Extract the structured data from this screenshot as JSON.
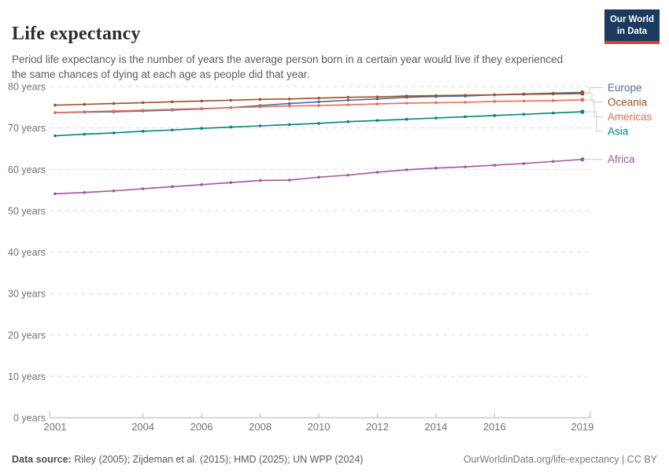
{
  "header": {
    "title": "Life expectancy",
    "subtitle": "Period life expectancy is the number of years the average person born in a certain year would live if they experienced the same chances of dying at each age as people did that year.",
    "logo": {
      "line1": "Our World",
      "line2": "in Data",
      "bg_color": "#1b3a5f",
      "bar_color": "#dc3c2a"
    }
  },
  "chart_data": {
    "type": "line",
    "title": "Life expectancy",
    "xlabel": "",
    "ylabel": "",
    "x": [
      2001,
      2002,
      2003,
      2004,
      2005,
      2006,
      2007,
      2008,
      2009,
      2010,
      2011,
      2012,
      2013,
      2014,
      2015,
      2016,
      2017,
      2018,
      2019
    ],
    "x_tick_labels": [
      2001,
      2004,
      2006,
      2008,
      2010,
      2012,
      2014,
      2016,
      2019
    ],
    "y_ticks": [
      0,
      10,
      20,
      30,
      40,
      50,
      60,
      70,
      80
    ],
    "y_tick_suffix": " years",
    "ylim": [
      0,
      80
    ],
    "xlim": [
      2001,
      2019
    ],
    "grid": "horizontal-dashed",
    "legend_position": "right-of-line-ends",
    "series": [
      {
        "name": "Europe",
        "color": "#4C6A9C",
        "values": [
          73.7,
          73.8,
          73.9,
          74.1,
          74.3,
          74.6,
          74.9,
          75.4,
          75.9,
          76.3,
          76.7,
          77.0,
          77.4,
          77.6,
          77.7,
          78.0,
          78.2,
          78.4,
          78.6
        ]
      },
      {
        "name": "Oceania",
        "color": "#9A5129",
        "values": [
          75.5,
          75.7,
          75.9,
          76.1,
          76.3,
          76.5,
          76.7,
          76.9,
          77.0,
          77.2,
          77.4,
          77.5,
          77.7,
          77.8,
          77.9,
          78.0,
          78.1,
          78.2,
          78.3
        ]
      },
      {
        "name": "Americas",
        "color": "#E56E5A",
        "values": [
          73.7,
          73.9,
          74.1,
          74.3,
          74.5,
          74.7,
          74.9,
          75.1,
          75.3,
          75.4,
          75.6,
          75.8,
          76.0,
          76.1,
          76.2,
          76.4,
          76.5,
          76.6,
          76.8
        ]
      },
      {
        "name": "Asia",
        "color": "#00847E",
        "values": [
          68.1,
          68.5,
          68.8,
          69.2,
          69.5,
          69.9,
          70.2,
          70.5,
          70.8,
          71.1,
          71.5,
          71.8,
          72.1,
          72.4,
          72.7,
          73.0,
          73.3,
          73.6,
          73.9
        ]
      },
      {
        "name": "Africa",
        "color": "#A2559C",
        "values": [
          54.1,
          54.4,
          54.8,
          55.3,
          55.8,
          56.3,
          56.8,
          57.3,
          57.4,
          58.1,
          58.6,
          59.3,
          59.9,
          60.3,
          60.6,
          61.0,
          61.4,
          61.9,
          62.4
        ]
      }
    ],
    "style": {
      "gridline_color": "#dadada",
      "axis_color": "#b3b3b3",
      "tick_label_color": "#737373",
      "leader_line_color": "#cccccc"
    }
  },
  "footer": {
    "source_label": "Data source:",
    "source_text": " Riley (2005); Zijdeman et al. (2015); HMD (2025); UN WPP (2024)",
    "link_text": "OurWorldinData.org/life-expectancy | CC BY"
  }
}
